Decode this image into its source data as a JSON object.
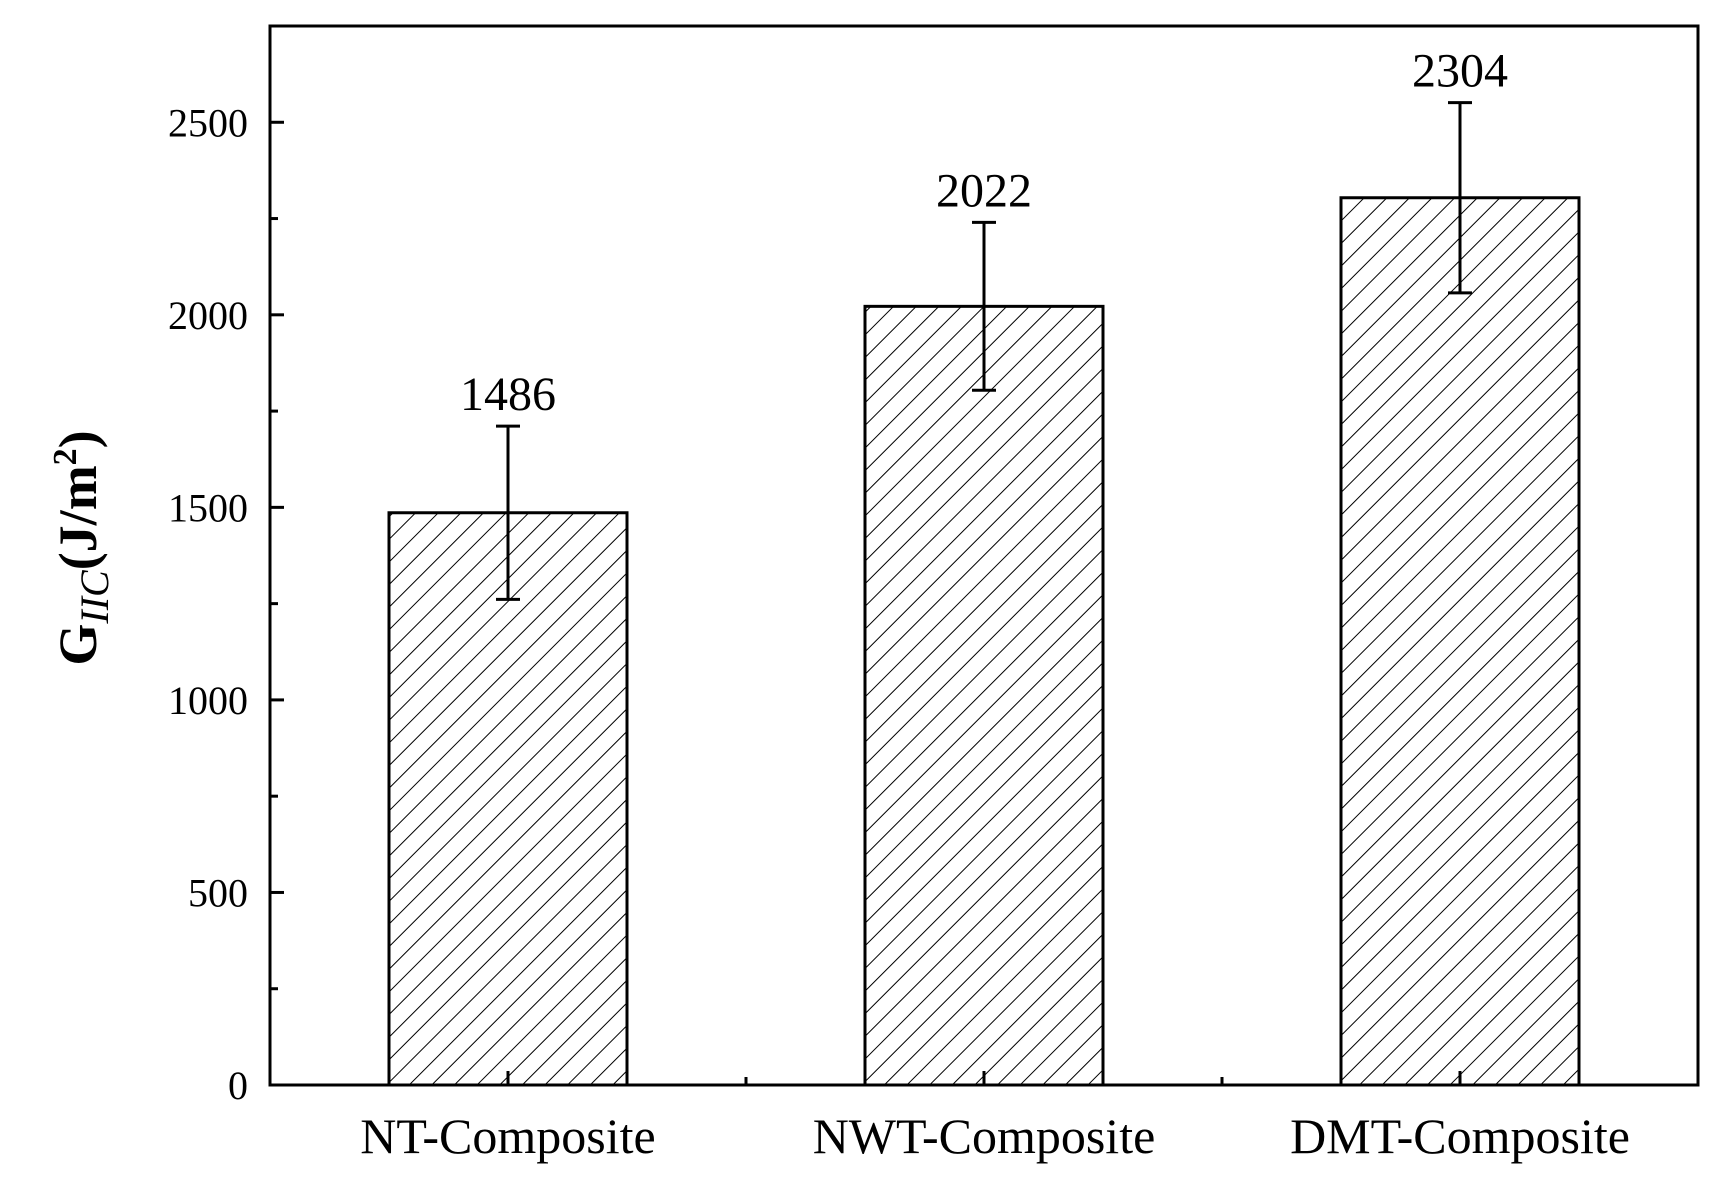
{
  "chart_data": {
    "type": "bar",
    "categories": [
      "NT-Composite",
      "NWT-Composite",
      "DMT-Composite"
    ],
    "values": [
      1486,
      2022,
      2304
    ],
    "errors": [
      225,
      218,
      247
    ],
    "data_labels": [
      "1486",
      "2022",
      "2304"
    ],
    "ylabel": {
      "main": "G",
      "sub": "IIC",
      "unit_open": "(J/m",
      "unit_sup": "2",
      "unit_close": ")"
    },
    "xlabel": "",
    "title": "",
    "ylim": [
      0,
      2750
    ],
    "yticks": [
      0,
      500,
      1000,
      1500,
      2000,
      2500
    ],
    "ytick_labels": [
      "0",
      "500",
      "1000",
      "1500",
      "2000",
      "2500"
    ],
    "bar_fill": "hatched diagonal",
    "colors": {
      "bar_fill": "#ffffff",
      "hatch": "#000000",
      "edge": "#000000"
    },
    "grid": false,
    "legend": "none"
  }
}
